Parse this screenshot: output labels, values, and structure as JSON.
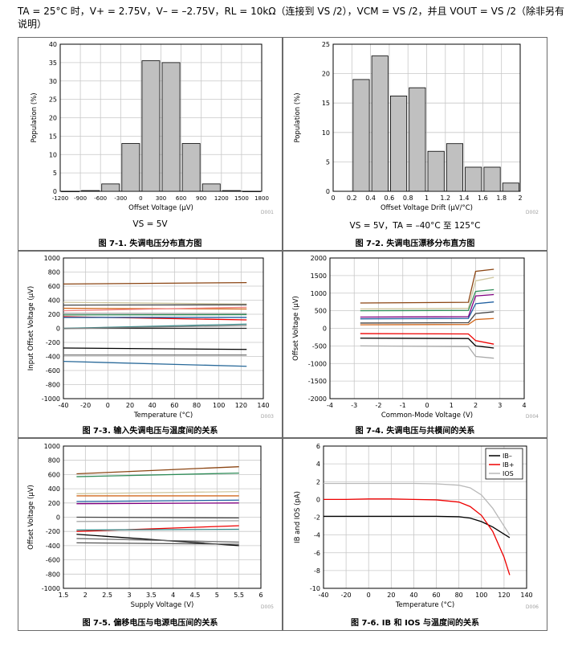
{
  "header": {
    "conditions": "TA = 25°C 时，V+ = 2.75V，V– = –2.75V，RL = 10kΩ（连接到 VS /2），VCM = VS /2，并且 VOUT = VS /2（除非另有说明）"
  },
  "colors": {
    "bar_fill": "#c0c0c0",
    "bar_stroke": "#000000",
    "grid": "#c8c8c8",
    "frame": "#6b6b6b",
    "ib_minus": "#000000",
    "ib_plus": "#ee0000",
    "ios": "#b8b8b8"
  },
  "panels": [
    {
      "id": "fig1",
      "caption": "图 7-1. 失调电压分布直方图",
      "subtitle": "VS = 5V",
      "code": "D001",
      "chart_data": {
        "type": "bar",
        "xlabel": "Offset Voltage (µV)",
        "ylabel": "Population (%)",
        "categories": [
          "-1200",
          "-900",
          "-600",
          "-300",
          "0",
          "300",
          "600",
          "900",
          "1200",
          "1500",
          "1800"
        ],
        "bins": [
          {
            "from": -1200,
            "to": -900,
            "value": 0
          },
          {
            "from": -900,
            "to": -600,
            "value": 0.2
          },
          {
            "from": -600,
            "to": -300,
            "value": 2
          },
          {
            "from": -300,
            "to": 0,
            "value": 13
          },
          {
            "from": 0,
            "to": 300,
            "value": 35.5
          },
          {
            "from": 300,
            "to": 600,
            "value": 35
          },
          {
            "from": 600,
            "to": 900,
            "value": 13
          },
          {
            "from": 900,
            "to": 1200,
            "value": 2
          },
          {
            "from": 1200,
            "to": 1500,
            "value": 0.2
          },
          {
            "from": 1500,
            "to": 1800,
            "value": 0
          }
        ],
        "xlim": [
          -1200,
          1800
        ],
        "ylim": [
          0,
          40
        ],
        "xticks": [
          -1200,
          -900,
          -600,
          -300,
          0,
          300,
          600,
          900,
          1200,
          1500,
          1800
        ],
        "yticks": [
          0,
          5,
          10,
          15,
          20,
          25,
          30,
          35,
          40
        ]
      }
    },
    {
      "id": "fig2",
      "caption": "图 7-2. 失调电压漂移分布直方图",
      "subtitle": "VS = 5V，TA = –40°C 至 125°C",
      "code": "D002",
      "chart_data": {
        "type": "bar",
        "xlabel": "Offset Voltage Drift (µV/°C)",
        "ylabel": "Population (%)",
        "bins": [
          {
            "from": 0.2,
            "to": 0.4,
            "value": 19
          },
          {
            "from": 0.4,
            "to": 0.6,
            "value": 23
          },
          {
            "from": 0.6,
            "to": 0.8,
            "value": 16.2
          },
          {
            "from": 0.8,
            "to": 1.0,
            "value": 17.6
          },
          {
            "from": 1.0,
            "to": 1.2,
            "value": 6.8
          },
          {
            "from": 1.2,
            "to": 1.4,
            "value": 8.1
          },
          {
            "from": 1.4,
            "to": 1.6,
            "value": 4.1
          },
          {
            "from": 1.6,
            "to": 1.8,
            "value": 4.1
          },
          {
            "from": 1.8,
            "to": 2.0,
            "value": 1.4
          }
        ],
        "xlim": [
          0,
          2.0
        ],
        "ylim": [
          0,
          25
        ],
        "xticks": [
          0,
          0.2,
          0.4,
          0.6,
          0.8,
          1,
          1.2,
          1.4,
          1.6,
          1.8,
          2
        ],
        "yticks": [
          0,
          5,
          10,
          15,
          20,
          25
        ]
      }
    },
    {
      "id": "fig3",
      "caption": "图 7-3. 输入失调电压与温度间的关系",
      "code": "D003",
      "chart_data": {
        "type": "line",
        "xlabel": "Temperature (°C)",
        "ylabel": "Input Offset Voltage (µV)",
        "xlim": [
          -40,
          140
        ],
        "ylim": [
          -1000,
          1000
        ],
        "xticks": [
          -40,
          -20,
          0,
          20,
          40,
          60,
          80,
          100,
          120,
          140
        ],
        "yticks": [
          -1000,
          -800,
          -600,
          -400,
          -200,
          0,
          200,
          400,
          600,
          800,
          1000
        ],
        "x": [
          -40,
          125
        ],
        "series": [
          {
            "color": "#8b4513",
            "y": [
              630,
              650
            ]
          },
          {
            "color": "#cfc7a0",
            "y": [
              370,
              345
            ]
          },
          {
            "color": "#444444",
            "y": [
              330,
              335
            ]
          },
          {
            "color": "#d2691e",
            "y": [
              285,
              275
            ]
          },
          {
            "color": "#f08080",
            "y": [
              250,
              300
            ]
          },
          {
            "color": "#a9a9a9",
            "y": [
              215,
              210
            ]
          },
          {
            "color": "#2e8b57",
            "y": [
              190,
              195
            ]
          },
          {
            "color": "#ee0000",
            "y": [
              165,
              120
            ]
          },
          {
            "color": "#1f5fa0",
            "y": [
              155,
              155
            ]
          },
          {
            "color": "#222222",
            "y": [
              0,
              0
            ]
          },
          {
            "color": "#3a8a8a",
            "y": [
              0,
              60
            ]
          },
          {
            "color": "#808080",
            "y": [
              -5,
              40
            ]
          },
          {
            "color": "#000000",
            "y": [
              -280,
              -300
            ]
          },
          {
            "color": "#6b6b6b",
            "y": [
              -380,
              -380
            ]
          },
          {
            "color": "#2a6a9a",
            "y": [
              -470,
              -540
            ]
          }
        ]
      }
    },
    {
      "id": "fig4",
      "caption": "图 7-4. 失调电压与共模间的关系",
      "code": "D004",
      "chart_data": {
        "type": "line",
        "xlabel": "Common-Mode Voltage (V)",
        "ylabel": "Offset Voltage (µV)",
        "xlim": [
          -4,
          4
        ],
        "ylim": [
          -2000,
          2000
        ],
        "xticks": [
          -4,
          -3,
          -2,
          -1,
          0,
          1,
          2,
          3,
          4
        ],
        "yticks": [
          -2000,
          -1500,
          -1000,
          -500,
          0,
          500,
          1000,
          1500,
          2000
        ],
        "x": [
          -2.75,
          1.7,
          2.0,
          2.75
        ],
        "series": [
          {
            "color": "#8b4513",
            "y": [
              720,
              740,
              1620,
              1680
            ]
          },
          {
            "color": "#cfc7a0",
            "y": [
              550,
              570,
              1350,
              1450
            ]
          },
          {
            "color": "#2e8b57",
            "y": [
              500,
              510,
              1050,
              1100
            ]
          },
          {
            "color": "#800080",
            "y": [
              320,
              330,
              920,
              960
            ]
          },
          {
            "color": "#1f5fa0",
            "y": [
              270,
              280,
              700,
              750
            ]
          },
          {
            "color": "#444444",
            "y": [
              150,
              160,
              420,
              470
            ]
          },
          {
            "color": "#d2691e",
            "y": [
              100,
              110,
              250,
              280
            ]
          },
          {
            "color": "#ee0000",
            "y": [
              -150,
              -160,
              -350,
              -450
            ]
          },
          {
            "color": "#000000",
            "y": [
              -280,
              -290,
              -500,
              -560
            ]
          },
          {
            "color": "#a9a9a9",
            "y": [
              -500,
              -520,
              -800,
              -850
            ]
          }
        ]
      }
    },
    {
      "id": "fig5",
      "caption": "图 7-5. 偏移电压与电源电压间的关系",
      "code": "D005",
      "chart_data": {
        "type": "line",
        "xlabel": "Supply Voltage (V)",
        "ylabel": "Offset Voltage (µV)",
        "xlim": [
          1.5,
          6
        ],
        "ylim": [
          -1000,
          1000
        ],
        "xticks": [
          1.5,
          2,
          2.5,
          3,
          3.5,
          4,
          4.5,
          5,
          5.5,
          6
        ],
        "yticks": [
          -1000,
          -800,
          -600,
          -400,
          -200,
          0,
          200,
          400,
          600,
          800,
          1000
        ],
        "x": [
          1.8,
          5.5
        ],
        "series": [
          {
            "color": "#8b4513",
            "y": [
              610,
              710
            ]
          },
          {
            "color": "#2e8b57",
            "y": [
              570,
              620
            ]
          },
          {
            "color": "#cfc7a0",
            "y": [
              330,
              360
            ]
          },
          {
            "color": "#d2691e",
            "y": [
              300,
              300
            ]
          },
          {
            "color": "#1f5fa0",
            "y": [
              220,
              240
            ]
          },
          {
            "color": "#800080",
            "y": [
              190,
              200
            ]
          },
          {
            "color": "#444444",
            "y": [
              0,
              -10
            ]
          },
          {
            "color": "#a9a9a9",
            "y": [
              -60,
              -50
            ]
          },
          {
            "color": "#ee0000",
            "y": [
              -200,
              -120
            ]
          },
          {
            "color": "#3a8a8a",
            "y": [
              -180,
              -170
            ]
          },
          {
            "color": "#000000",
            "y": [
              -240,
              -400
            ]
          },
          {
            "color": "#6b6b6b",
            "y": [
              -300,
              -350
            ]
          },
          {
            "color": "#555555",
            "y": [
              -360,
              -380
            ]
          }
        ]
      }
    },
    {
      "id": "fig6",
      "caption": "图 7-6. IB 和 IOS 与温度间的关系",
      "code": "D006",
      "chart_data": {
        "type": "line",
        "xlabel": "Temperature (°C)",
        "ylabel": "IB and IOS (pA)",
        "xlim": [
          -40,
          140
        ],
        "ylim": [
          -10,
          6
        ],
        "xticks": [
          -40,
          -20,
          0,
          20,
          40,
          60,
          80,
          100,
          120,
          140
        ],
        "yticks": [
          -10,
          -8,
          -6,
          -4,
          -2,
          0,
          2,
          4,
          6
        ],
        "legend_position": "top-right",
        "series": [
          {
            "name": "IB–",
            "color": "#000000",
            "x": [
              -40,
              -20,
              0,
              20,
              40,
              60,
              80,
              90,
              100,
              110,
              120,
              125
            ],
            "y": [
              -1.9,
              -1.9,
              -1.9,
              -1.9,
              -1.9,
              -1.9,
              -1.95,
              -2.1,
              -2.5,
              -3.1,
              -3.9,
              -4.3
            ]
          },
          {
            "name": "IB+",
            "color": "#ee0000",
            "x": [
              -40,
              -20,
              0,
              20,
              40,
              60,
              80,
              90,
              100,
              110,
              120,
              125
            ],
            "y": [
              0,
              0,
              0.05,
              0.05,
              0,
              -0.05,
              -0.3,
              -0.8,
              -1.8,
              -3.6,
              -6.5,
              -8.5
            ]
          },
          {
            "name": "IOS",
            "color": "#b8b8b8",
            "x": [
              -40,
              -20,
              0,
              20,
              40,
              60,
              80,
              90,
              100,
              110,
              120,
              125
            ],
            "y": [
              1.8,
              1.8,
              1.8,
              1.8,
              1.8,
              1.75,
              1.6,
              1.3,
              0.5,
              -1.0,
              -3.0,
              -4.0
            ]
          }
        ]
      }
    }
  ]
}
